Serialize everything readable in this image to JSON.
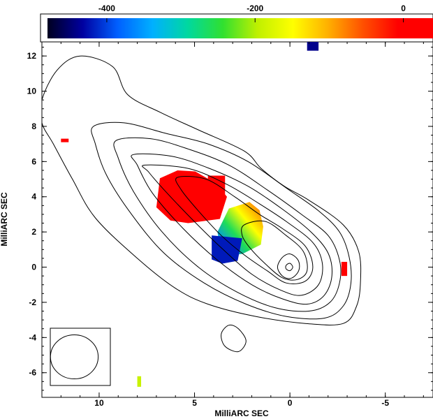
{
  "chart_data": {
    "type": "contour",
    "xlabel": "MilliARC SEC",
    "ylabel": "MilliARC SEC",
    "xlim": [
      13,
      -7.5
    ],
    "ylim": [
      -7.4,
      12.8
    ],
    "x_ticks": [
      10,
      5,
      0,
      -5
    ],
    "x_tick_labels": [
      "10",
      "5",
      "0",
      "-5"
    ],
    "y_ticks": [
      12,
      10,
      8,
      6,
      4,
      2,
      0,
      -2,
      -4,
      -6
    ],
    "y_tick_labels": [
      "12",
      "10",
      "8",
      "6",
      "4",
      "2",
      "0",
      "-2",
      "-4",
      "-6"
    ],
    "colorbar": {
      "range": [
        -480,
        40
      ],
      "ticks": [
        -400,
        -200,
        0
      ],
      "tick_labels": [
        "-400",
        "-200",
        "0"
      ],
      "colormap": [
        "#000020",
        "#0000a0",
        "#0060ff",
        "#00b0ff",
        "#00d8a0",
        "#30e030",
        "#c0f000",
        "#ffff00",
        "#ffb000",
        "#ff5000",
        "#ff0000",
        "#ff0000"
      ]
    },
    "core": {
      "x": 0,
      "y": 0
    },
    "beam": {
      "x": 11.3,
      "y": -5.1,
      "major": 2.5,
      "minor": 2.5
    },
    "contour_levels": [
      {
        "level": 1,
        "points": [
          [
            13.0,
            9.5
          ],
          [
            12.2,
            11.2
          ],
          [
            11.0,
            12.0
          ],
          [
            9.3,
            11.4
          ],
          [
            8.5,
            9.8
          ],
          [
            6.8,
            8.8
          ],
          [
            4.8,
            7.8
          ],
          [
            2.4,
            6.6
          ],
          [
            1.5,
            5.6
          ],
          [
            0.3,
            4.6
          ],
          [
            -1.0,
            3.8
          ],
          [
            -2.8,
            2.4
          ],
          [
            -3.6,
            0.9
          ],
          [
            -3.7,
            -0.8
          ],
          [
            -3.5,
            -2.2
          ],
          [
            -2.8,
            -3.2
          ],
          [
            -0.8,
            -3.2
          ],
          [
            1.8,
            -2.8
          ],
          [
            4.3,
            -2.1
          ],
          [
            6.0,
            -1.2
          ],
          [
            8.0,
            0.5
          ],
          [
            10.2,
            2.8
          ],
          [
            11.4,
            5.0
          ],
          [
            12.4,
            7.0
          ],
          [
            13.0,
            8.2
          ]
        ]
      },
      {
        "level": 2,
        "points": [
          [
            10.3,
            8.0
          ],
          [
            8.7,
            8.2
          ],
          [
            6.5,
            7.6
          ],
          [
            4.3,
            7.0
          ],
          [
            2.2,
            6.0
          ],
          [
            0.2,
            4.5
          ],
          [
            -1.5,
            3.2
          ],
          [
            -2.6,
            2.0
          ],
          [
            -3.1,
            0.6
          ],
          [
            -3.2,
            -0.9
          ],
          [
            -2.8,
            -2.2
          ],
          [
            -1.8,
            -2.9
          ],
          [
            0.2,
            -2.8
          ],
          [
            2.3,
            -2.1
          ],
          [
            4.5,
            -0.9
          ],
          [
            6.6,
            0.8
          ],
          [
            8.3,
            3.0
          ],
          [
            9.6,
            5.2
          ],
          [
            10.2,
            7.0
          ]
        ]
      },
      {
        "level": 3,
        "points": [
          [
            9.1,
            7.2
          ],
          [
            7.3,
            7.3
          ],
          [
            5.3,
            6.7
          ],
          [
            3.2,
            5.8
          ],
          [
            1.2,
            4.4
          ],
          [
            -0.6,
            3.0
          ],
          [
            -2.0,
            1.8
          ],
          [
            -2.6,
            0.4
          ],
          [
            -2.6,
            -0.9
          ],
          [
            -2.1,
            -2.0
          ],
          [
            -1.0,
            -2.5
          ],
          [
            0.8,
            -2.3
          ],
          [
            2.8,
            -1.4
          ],
          [
            4.8,
            0.0
          ],
          [
            6.7,
            2.0
          ],
          [
            8.2,
            4.3
          ],
          [
            9.0,
            6.2
          ]
        ]
      },
      {
        "level": 4,
        "points": [
          [
            8.2,
            6.4
          ],
          [
            6.2,
            6.3
          ],
          [
            4.2,
            5.6
          ],
          [
            2.2,
            4.6
          ],
          [
            0.4,
            3.3
          ],
          [
            -1.1,
            2.0
          ],
          [
            -2.0,
            0.8
          ],
          [
            -2.2,
            -0.5
          ],
          [
            -1.8,
            -1.6
          ],
          [
            -0.9,
            -2.1
          ],
          [
            0.4,
            -1.8
          ],
          [
            2.0,
            -1.0
          ],
          [
            3.8,
            0.4
          ],
          [
            5.6,
            2.2
          ],
          [
            7.2,
            4.2
          ],
          [
            8.0,
            5.8
          ]
        ]
      },
      {
        "level": 5,
        "points": [
          [
            7.6,
            5.8
          ],
          [
            5.3,
            5.6
          ],
          [
            3.3,
            4.7
          ],
          [
            1.6,
            3.6
          ],
          [
            0.2,
            2.6
          ],
          [
            -1.2,
            1.4
          ],
          [
            -1.7,
            0.2
          ],
          [
            -1.5,
            -1.0
          ],
          [
            -0.6,
            -1.6
          ],
          [
            0.5,
            -1.3
          ],
          [
            2.0,
            -0.4
          ],
          [
            3.6,
            1.1
          ],
          [
            5.2,
            2.8
          ],
          [
            6.6,
            4.4
          ],
          [
            7.4,
            5.4
          ]
        ]
      },
      {
        "level": 6,
        "points": [
          [
            5.9,
            5.1
          ],
          [
            4.4,
            5.0
          ],
          [
            2.9,
            4.0
          ],
          [
            1.6,
            3.0
          ],
          [
            0.4,
            2.2
          ],
          [
            -0.8,
            1.2
          ],
          [
            -1.2,
            0.0
          ],
          [
            -0.8,
            -0.8
          ],
          [
            0.2,
            -0.9
          ],
          [
            1.2,
            -0.2
          ],
          [
            2.4,
            0.7
          ],
          [
            3.6,
            1.8
          ],
          [
            4.8,
            3.2
          ],
          [
            5.7,
            4.4
          ]
        ]
      },
      {
        "level": 7,
        "points": [
          [
            2.4,
            2.4
          ],
          [
            1.3,
            2.6
          ],
          [
            0.2,
            1.8
          ],
          [
            -0.7,
            0.9
          ],
          [
            -0.9,
            -0.2
          ],
          [
            -0.4,
            -0.7
          ],
          [
            0.4,
            -0.6
          ],
          [
            1.3,
            0.2
          ],
          [
            2.1,
            1.1
          ],
          [
            2.5,
            1.8
          ]
        ]
      },
      {
        "level": 8,
        "points": [
          [
            -0.5,
            0.0
          ],
          [
            -0.4,
            0.45
          ],
          [
            0.0,
            0.75
          ],
          [
            0.4,
            0.55
          ],
          [
            0.65,
            0.0
          ],
          [
            0.4,
            -0.5
          ],
          [
            0.0,
            -0.65
          ],
          [
            -0.35,
            -0.4
          ]
        ]
      },
      {
        "level": 9,
        "points": [
          [
            -0.15,
            0.0
          ],
          [
            0.0,
            0.22
          ],
          [
            0.2,
            0.1
          ],
          [
            0.2,
            -0.1
          ],
          [
            0.0,
            -0.2
          ]
        ]
      },
      {
        "level": 10,
        "points": [
          [
            3.2,
            -3.3
          ],
          [
            2.7,
            -3.5
          ],
          [
            2.3,
            -4.2
          ],
          [
            2.7,
            -4.8
          ],
          [
            3.4,
            -4.5
          ],
          [
            3.6,
            -3.8
          ]
        ]
      }
    ],
    "rm_pixels": [
      {
        "x0": 7.0,
        "x1": 3.3,
        "y0": 2.5,
        "y1": 5.5,
        "value": 20,
        "shape": "blob-red"
      },
      {
        "x0": 4.3,
        "x1": 3.4,
        "y0": 3.9,
        "y1": 5.2,
        "value": 20,
        "shape": "red-tail"
      },
      {
        "x0": 3.8,
        "x1": 1.4,
        "y0": 0.6,
        "y1": 3.7,
        "value": -250,
        "shape": "rainbow-patch"
      },
      {
        "x0": 4.1,
        "x1": 2.5,
        "y0": 0.2,
        "y1": 1.8,
        "value": -420,
        "shape": "blue-corner"
      },
      {
        "x0": -0.9,
        "x1": -1.5,
        "y0": 12.3,
        "y1": 12.8,
        "value": -440,
        "shape": "top-blue"
      },
      {
        "x0": 12.0,
        "x1": 11.6,
        "y0": 7.1,
        "y1": 7.3,
        "value": 10,
        "shape": "left-red"
      },
      {
        "x0": -2.7,
        "x1": -3.0,
        "y0": -0.5,
        "y1": 0.3,
        "value": 10,
        "shape": "right-red"
      },
      {
        "x0": 8.0,
        "x1": 7.8,
        "y0": -6.8,
        "y1": -6.2,
        "value": -190,
        "shape": "bottom-green"
      }
    ]
  }
}
